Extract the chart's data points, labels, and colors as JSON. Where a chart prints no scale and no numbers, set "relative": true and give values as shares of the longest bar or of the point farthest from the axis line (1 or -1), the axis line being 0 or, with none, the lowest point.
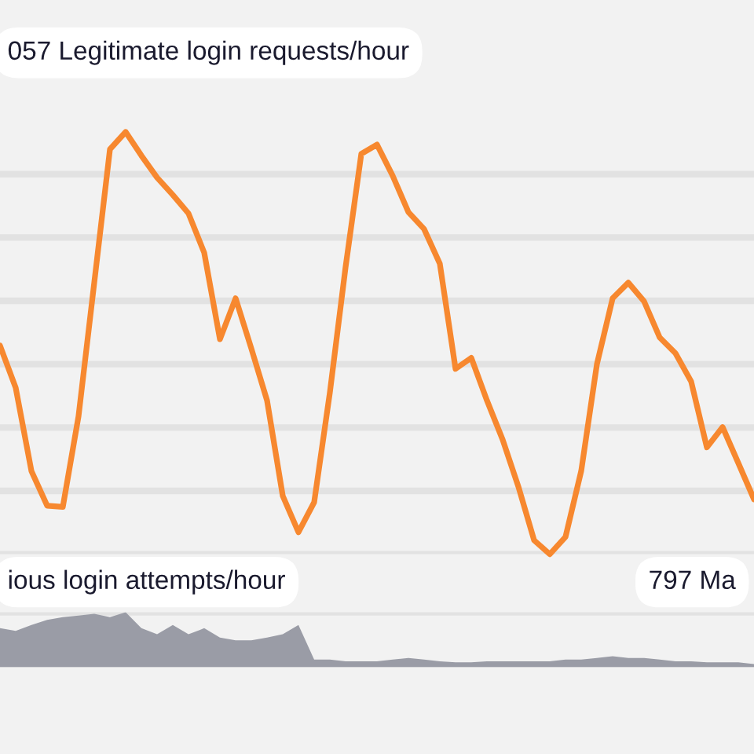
{
  "chart_data": [
    {
      "type": "line",
      "relative": true,
      "grid": "y",
      "categories": [
        null,
        null,
        null,
        null,
        null,
        null,
        null,
        null,
        null,
        null,
        null,
        null,
        null,
        null,
        null,
        null,
        null,
        null,
        null,
        null,
        null,
        null,
        null,
        null,
        null,
        null,
        null,
        null,
        null,
        null,
        null,
        null,
        null,
        null,
        null,
        null,
        null,
        null,
        null,
        null,
        null,
        null,
        null,
        null,
        null,
        null,
        null,
        null,
        null
      ],
      "annotations": [
        "057 Legitimate login requests/hour"
      ],
      "series": [
        {
          "color": "#f7882f",
          "values": [
            0.494,
            0.394,
            0.197,
            0.115,
            0.112,
            0.327,
            0.643,
            0.959,
            1,
            0.944,
            0.892,
            0.851,
            0.807,
            0.714,
            0.509,
            0.606,
            0.487,
            0.364,
            0.138,
            0.052,
            0.123,
            0.383,
            0.68,
            0.948,
            0.97,
            0.896,
            0.81,
            0.77,
            0.688,
            0.439,
            0.465,
            0.364,
            0.271,
            0.16,
            0.033,
            0,
            0.041,
            0.197,
            0.45,
            0.606,
            0.643,
            0.599,
            0.513,
            0.476,
            0.409,
            0.253,
            0.301,
            0.216,
            0.13
          ]
        }
      ]
    },
    {
      "type": "area",
      "relative": true,
      "grid": "y",
      "categories": [
        null,
        null,
        null,
        null,
        null,
        null,
        null,
        null,
        null,
        null,
        null,
        null,
        null,
        null,
        null,
        null,
        null,
        null,
        null,
        null,
        null,
        null,
        null,
        null,
        null,
        null,
        null,
        null,
        null,
        null,
        null,
        null,
        null,
        null,
        null,
        null,
        null,
        null,
        null,
        null,
        null,
        null,
        null,
        null,
        null,
        null,
        null,
        null,
        null
      ],
      "annotations": [
        "ious login attempts/hour",
        "797 Ma"
      ],
      "series": [
        {
          "color": "#9a9ca6",
          "values": [
            0.71,
            0.66,
            0.77,
            0.86,
            0.91,
            0.94,
            0.97,
            0.91,
            1,
            0.71,
            0.6,
            0.77,
            0.6,
            0.71,
            0.54,
            0.49,
            0.49,
            0.54,
            0.6,
            0.77,
            0.14,
            0.14,
            0.11,
            0.11,
            0.11,
            0.14,
            0.17,
            0.14,
            0.11,
            0.09,
            0.09,
            0.11,
            0.11,
            0.11,
            0.11,
            0.11,
            0.14,
            0.14,
            0.17,
            0.2,
            0.17,
            0.17,
            0.14,
            0.11,
            0.11,
            0.09,
            0.09,
            0.09,
            0.06
          ]
        }
      ]
    }
  ]
}
